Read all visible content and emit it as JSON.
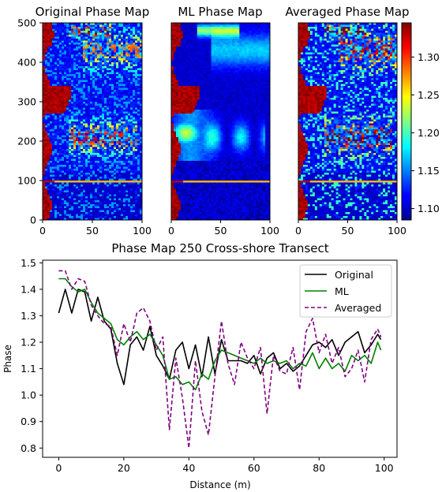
{
  "chart_data": [
    {
      "type": "heatmap",
      "title": "Original Phase Map",
      "xlim": [
        0,
        100
      ],
      "ylim": [
        0,
        500
      ],
      "xticks": [
        0,
        50,
        100
      ],
      "yticks": [
        0,
        100,
        200,
        300,
        400,
        500
      ],
      "colormap": "jet",
      "clim": [
        1.085,
        1.345
      ]
    },
    {
      "type": "heatmap",
      "title": "ML Phase Map",
      "xlim": [
        0,
        100
      ],
      "ylim": [
        0,
        500
      ],
      "xticks": [
        0,
        50,
        100
      ],
      "colormap": "jet",
      "clim": [
        1.085,
        1.345
      ]
    },
    {
      "type": "heatmap",
      "title": "Averaged Phase Map",
      "xlim": [
        0,
        100
      ],
      "ylim": [
        0,
        500
      ],
      "xticks": [
        0,
        50,
        100
      ],
      "colormap": "jet",
      "clim": [
        1.085,
        1.345
      ],
      "colorbar_ticks": [
        "1.10",
        "1.15",
        "1.20",
        "1.25",
        "1.30"
      ]
    },
    {
      "type": "line",
      "title": "Phase Map 250 Cross-shore Transect",
      "xlabel": "Distance (m)",
      "ylabel": "Phase",
      "xlim": [
        -4.95,
        103.95
      ],
      "ylim": [
        0.765,
        1.51
      ],
      "xticks": [
        0,
        20,
        40,
        60,
        80,
        100
      ],
      "yticks": [
        "0.8",
        "0.9",
        "1.0",
        "1.1",
        "1.2",
        "1.3",
        "1.4",
        "1.5"
      ],
      "legend": "top-right",
      "series": [
        {
          "name": "Original",
          "color": "#000000",
          "dash": "solid",
          "x": [
            0,
            2,
            4,
            6,
            8,
            10,
            12,
            14,
            16,
            18,
            20,
            22,
            24,
            26,
            28,
            30,
            32,
            34,
            36,
            38,
            40,
            42,
            44,
            46,
            48,
            50,
            52,
            54,
            56,
            58,
            60,
            62,
            64,
            66,
            68,
            70,
            72,
            74,
            76,
            78,
            80,
            82,
            84,
            86,
            88,
            90,
            92,
            94,
            96,
            98,
            99
          ],
          "y": [
            1.31,
            1.4,
            1.31,
            1.4,
            1.39,
            1.28,
            1.37,
            1.28,
            1.25,
            1.12,
            1.04,
            1.19,
            1.22,
            1.17,
            1.26,
            1.15,
            1.11,
            1.06,
            1.17,
            1.2,
            1.1,
            1.19,
            1.07,
            1.22,
            1.08,
            1.21,
            1.13,
            1.13,
            1.13,
            1.12,
            1.15,
            1.08,
            1.14,
            1.16,
            1.1,
            1.12,
            1.09,
            1.11,
            1.15,
            1.19,
            1.2,
            1.18,
            1.21,
            1.15,
            1.2,
            1.22,
            1.24,
            1.16,
            1.19,
            1.23,
            1.21
          ]
        },
        {
          "name": "ML",
          "color": "#008000",
          "dash": "solid",
          "x": [
            0,
            2,
            4,
            6,
            8,
            10,
            12,
            14,
            16,
            18,
            20,
            22,
            24,
            26,
            28,
            30,
            32,
            34,
            36,
            38,
            40,
            42,
            44,
            46,
            48,
            50,
            52,
            54,
            56,
            58,
            60,
            62,
            64,
            66,
            68,
            70,
            72,
            74,
            76,
            78,
            80,
            82,
            84,
            86,
            88,
            90,
            92,
            94,
            96,
            98,
            99
          ],
          "y": [
            1.44,
            1.44,
            1.41,
            1.39,
            1.4,
            1.35,
            1.31,
            1.29,
            1.27,
            1.21,
            1.19,
            1.22,
            1.24,
            1.21,
            1.23,
            1.19,
            1.15,
            1.06,
            1.07,
            1.04,
            1.05,
            1.02,
            1.08,
            1.06,
            1.13,
            1.17,
            1.16,
            1.15,
            1.14,
            1.13,
            1.12,
            1.14,
            1.12,
            1.13,
            1.12,
            1.13,
            1.1,
            1.12,
            1.11,
            1.16,
            1.1,
            1.14,
            1.1,
            1.12,
            1.09,
            1.15,
            1.13,
            1.15,
            1.12,
            1.2,
            1.17
          ]
        },
        {
          "name": "Averaged",
          "color": "#800080",
          "dash": "dashed",
          "x": [
            0,
            2,
            4,
            6,
            8,
            10,
            12,
            14,
            16,
            18,
            20,
            22,
            24,
            26,
            28,
            30,
            32,
            34,
            36,
            38,
            40,
            42,
            44,
            46,
            48,
            50,
            52,
            54,
            56,
            58,
            60,
            62,
            64,
            66,
            68,
            70,
            72,
            74,
            76,
            78,
            80,
            82,
            84,
            86,
            88,
            90,
            92,
            94,
            96,
            98,
            99
          ],
          "y": [
            1.47,
            1.47,
            1.4,
            1.44,
            1.43,
            1.34,
            1.3,
            1.27,
            1.26,
            1.15,
            1.27,
            1.2,
            1.31,
            1.33,
            1.28,
            1.17,
            1.22,
            0.87,
            1.14,
            0.99,
            0.8,
            1.13,
            0.94,
            0.85,
            1.07,
            1.28,
            1.12,
            1.04,
            1.2,
            1.14,
            1.1,
            1.18,
            0.93,
            1.15,
            1.09,
            1.08,
            1.18,
            1.02,
            1.24,
            1.29,
            1.16,
            1.23,
            1.12,
            1.18,
            1.07,
            1.1,
            1.17,
            1.05,
            1.21,
            1.25,
            1.22
          ]
        }
      ]
    }
  ]
}
